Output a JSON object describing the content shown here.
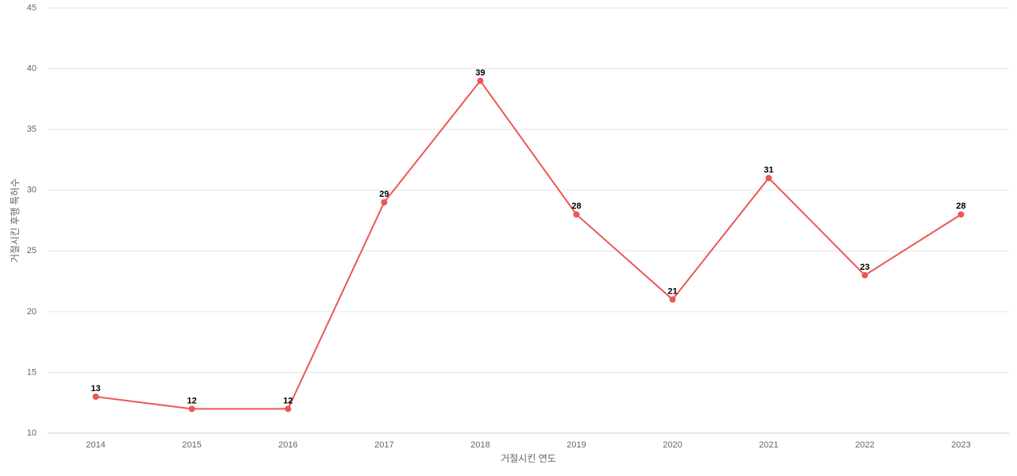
{
  "chart_data": {
    "type": "line",
    "x_label": "거절시킨 연도",
    "y_label": "거절시킨 후행 특허수",
    "categories": [
      "2014",
      "2015",
      "2016",
      "2017",
      "2018",
      "2019",
      "2020",
      "2021",
      "2022",
      "2023"
    ],
    "series": [
      {
        "color": "#eb5757",
        "values": [
          13,
          12,
          12,
          29,
          39,
          28,
          21,
          31,
          23,
          28
        ]
      }
    ],
    "ylim": [
      10,
      45
    ],
    "yticks": [
      10,
      15,
      20,
      25,
      30,
      35,
      40,
      45
    ],
    "grid": true
  }
}
